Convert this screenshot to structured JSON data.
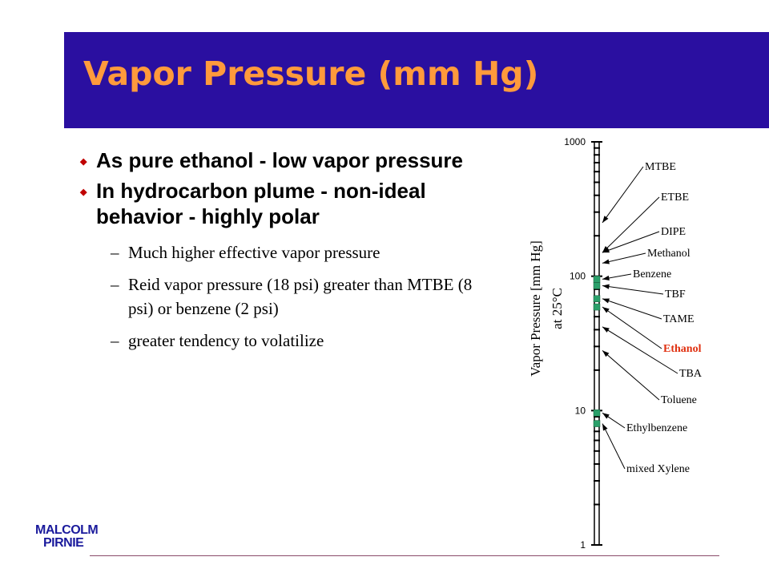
{
  "slide": {
    "title": "Vapor Pressure (mm Hg)",
    "colors": {
      "title_bar": "#2a0fa0",
      "title_text": "#ff9a3c",
      "bullet_mark": "#c00000",
      "highlight": "#e03010"
    }
  },
  "bullets": [
    {
      "text": "As pure ethanol - low vapor pressure"
    },
    {
      "text": "In hydrocarbon plume - non-ideal behavior - highly polar"
    }
  ],
  "sub_bullets": [
    {
      "dash": "–",
      "text": "Much higher effective vapor pressure"
    },
    {
      "dash": "–",
      "text": "Reid vapor pressure (18 psi) greater than MTBE (8 psi) or benzene (2 psi)"
    },
    {
      "dash": "–",
      "text": "greater tendency to volatilize"
    }
  ],
  "logo": {
    "line1": "MALCOLM",
    "line2": "PIRNIE"
  },
  "chart_data": {
    "type": "scatter",
    "scale": "log",
    "ylim": [
      1,
      1000
    ],
    "ylabel_line1": "Vapor Pressure  [mm Hg]",
    "ylabel_line2": "at 25°C",
    "ticks": [
      "1000",
      "100",
      "10",
      "1"
    ],
    "tick_values": [
      1000,
      100,
      10,
      1
    ],
    "compounds": [
      {
        "name": "MTBE",
        "value": 250,
        "highlight": false
      },
      {
        "name": "ETBE",
        "value": 150,
        "highlight": false
      },
      {
        "name": "DIPE",
        "value": 150,
        "highlight": false
      },
      {
        "name": "Methanol",
        "value": 125,
        "highlight": false
      },
      {
        "name": "Benzene",
        "value": 95,
        "highlight": false
      },
      {
        "name": "TBF",
        "value": 85,
        "highlight": false
      },
      {
        "name": "TAME",
        "value": 68,
        "highlight": false
      },
      {
        "name": "Ethanol",
        "value": 59,
        "highlight": true
      },
      {
        "name": "TBA",
        "value": 42,
        "highlight": false
      },
      {
        "name": "Toluene",
        "value": 28,
        "highlight": false
      },
      {
        "name": "Ethylbenzene",
        "value": 9.6,
        "highlight": false
      },
      {
        "name": "mixed Xylene",
        "value": 8,
        "highlight": false
      }
    ]
  }
}
